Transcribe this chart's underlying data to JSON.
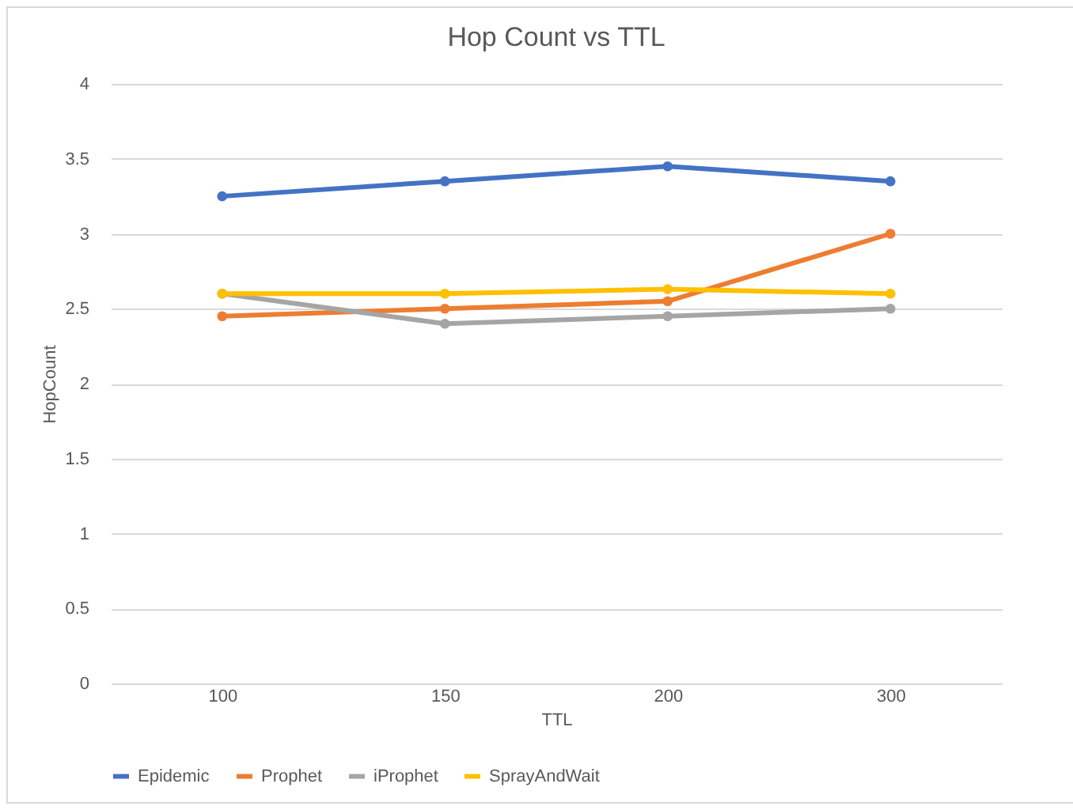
{
  "chart_data": {
    "type": "line",
    "title": "Hop Count vs TTL",
    "xlabel": "TTL",
    "ylabel": "HopCount",
    "categories": [
      "100",
      "150",
      "200",
      "300"
    ],
    "series": [
      {
        "name": "Epidemic",
        "color": "#4472c4",
        "values": [
          3.25,
          3.35,
          3.45,
          3.35
        ]
      },
      {
        "name": "Prophet",
        "color": "#ed7d31",
        "values": [
          2.45,
          2.5,
          2.55,
          3.0
        ]
      },
      {
        "name": "iProphet",
        "color": "#a5a5a5",
        "values": [
          2.6,
          2.4,
          2.45,
          2.5
        ]
      },
      {
        "name": "SprayAndWait",
        "color": "#ffc000",
        "values": [
          2.6,
          2.6,
          2.63,
          2.6
        ]
      }
    ],
    "ylim": [
      0,
      4
    ],
    "yticks": [
      0,
      0.5,
      1,
      1.5,
      2,
      2.5,
      3,
      3.5,
      4
    ],
    "grid": "y",
    "legend": "bottom",
    "marker": "circle",
    "line_style": "solid"
  }
}
